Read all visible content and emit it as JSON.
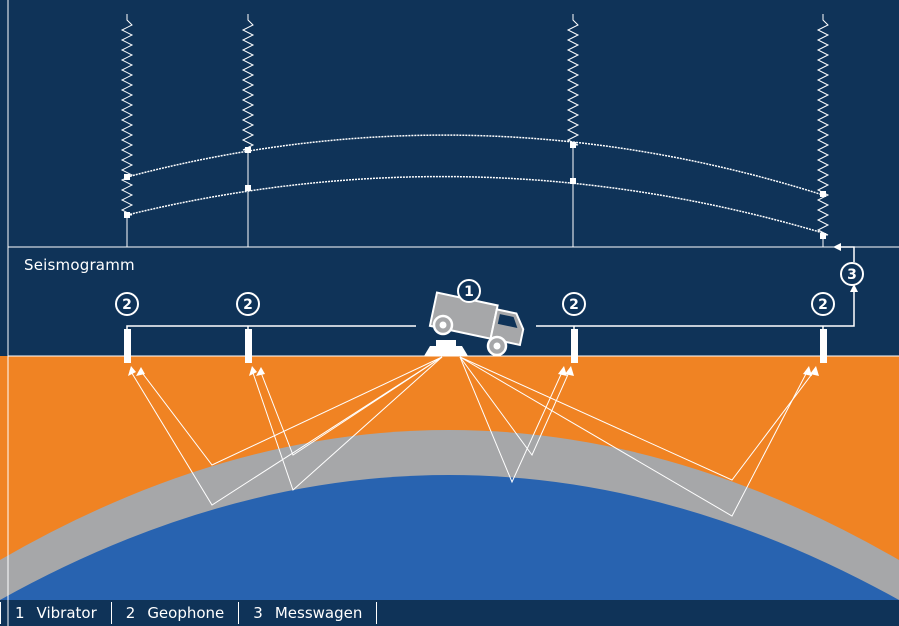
{
  "seismogram_label": "Seismogramm",
  "badges": {
    "vibrator": "1",
    "geophone": "2",
    "truck": "3"
  },
  "legend": [
    {
      "num": "1",
      "label": "Vibrator"
    },
    {
      "num": "2",
      "label": "Geophone"
    },
    {
      "num": "3",
      "label": "Messwagen"
    }
  ],
  "colors": {
    "background": "#0f3358",
    "layer_top": "#f08323",
    "layer_middle": "#a6a7a9",
    "layer_bottom": "#2863b0",
    "lines": "#ffffff"
  }
}
